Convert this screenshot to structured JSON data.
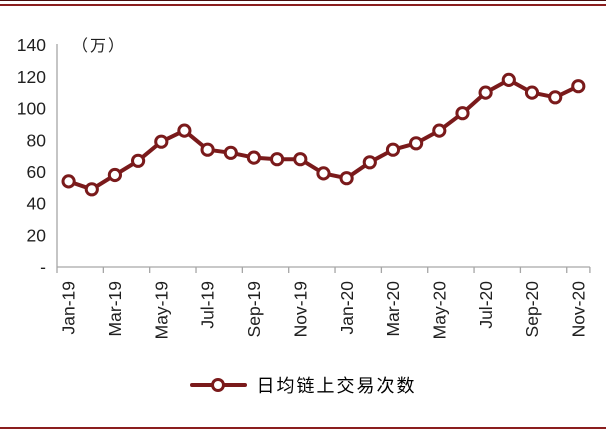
{
  "frame": {
    "top_rule_color": "#8B1E1E",
    "bottom_rule_color": "#8B1E1E"
  },
  "chart_data": {
    "type": "line",
    "title": "",
    "unit_label": "（万）",
    "categories": [
      "Jan-19",
      "Feb-19",
      "Mar-19",
      "Apr-19",
      "May-19",
      "Jun-19",
      "Jul-19",
      "Aug-19",
      "Sep-19",
      "Oct-19",
      "Nov-19",
      "Dec-19",
      "Jan-20",
      "Feb-20",
      "Mar-20",
      "Apr-20",
      "May-20",
      "Jun-20",
      "Jul-20",
      "Aug-20",
      "Sep-20",
      "Oct-20",
      "Nov-20"
    ],
    "visible_x_tick_labels": [
      "Jan-19",
      "Mar-19",
      "May-19",
      "Jul-19",
      "Sep-19",
      "Nov-19",
      "Jan-20",
      "Mar-20",
      "May-20",
      "Jul-20",
      "Sep-20",
      "Nov-20"
    ],
    "x_label_rotation_deg": -90,
    "series": [
      {
        "name": "日均链上交易次数",
        "color": "#7A1A1B",
        "marker": "open-circle",
        "values": [
          54,
          49,
          58,
          67,
          79,
          86,
          74,
          72,
          69,
          68,
          68,
          59,
          56,
          66,
          74,
          78,
          86,
          97,
          110,
          118,
          110,
          107,
          114
        ]
      }
    ],
    "ylim": [
      0,
      140
    ],
    "y_tick_interval": 20,
    "y_tick_labels": [
      "-",
      "20",
      "40",
      "60",
      "80",
      "100",
      "120",
      "140"
    ],
    "zero_tick_label": "-",
    "grid": false,
    "legend_position": "bottom",
    "axis_color": "#A6A6A6",
    "text_color": "#1f1f1f"
  }
}
